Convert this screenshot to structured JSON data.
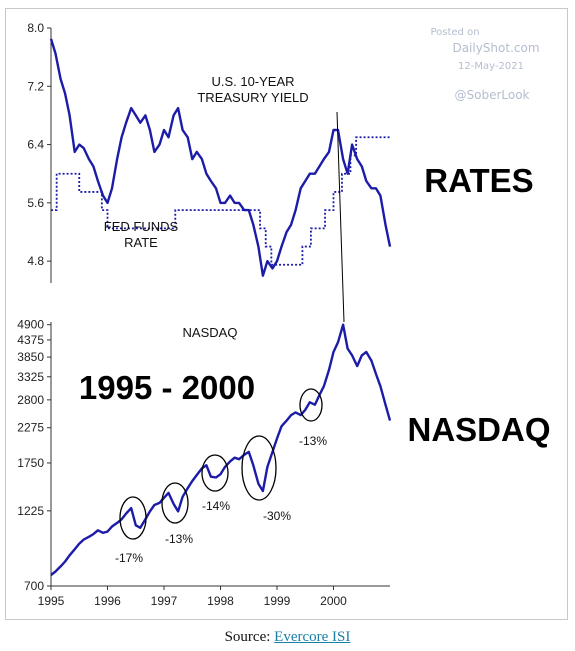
{
  "watermark": {
    "posted": "Posted on",
    "site": "DailyShot.com",
    "date": "12-May-2021",
    "handle": "@SoberLook"
  },
  "labels": {
    "rates_big": "RATES",
    "nasdaq_big": "NASDAQ",
    "period_big": "1995 - 2000"
  },
  "source": {
    "prefix": "Source:",
    "link_text": "Evercore ISI"
  },
  "chart_data": [
    {
      "type": "line",
      "panel": "rates",
      "xlim": [
        1995,
        2001
      ],
      "ylim": [
        4.5,
        8.0
      ],
      "yticks": [
        "8.0",
        "7.2",
        "6.4",
        "5.6",
        "4.8"
      ],
      "xticks": [],
      "color": "#1c1ca8",
      "series": [
        {
          "name": "U.S. 10-YEAR TREASURY YIELD",
          "style": "solid",
          "x": [
            1995.0,
            1995.08,
            1995.17,
            1995.25,
            1995.33,
            1995.42,
            1995.5,
            1995.58,
            1995.67,
            1995.75,
            1995.83,
            1995.92,
            1996.0,
            1996.08,
            1996.17,
            1996.25,
            1996.33,
            1996.42,
            1996.5,
            1996.58,
            1996.67,
            1996.75,
            1996.83,
            1996.92,
            1997.0,
            1997.08,
            1997.17,
            1997.25,
            1997.33,
            1997.42,
            1997.5,
            1997.58,
            1997.67,
            1997.75,
            1997.83,
            1997.92,
            1998.0,
            1998.08,
            1998.17,
            1998.25,
            1998.33,
            1998.42,
            1998.5,
            1998.58,
            1998.67,
            1998.75,
            1998.83,
            1998.92,
            1999.0,
            1999.08,
            1999.17,
            1999.25,
            1999.33,
            1999.42,
            1999.5,
            1999.58,
            1999.67,
            1999.75,
            1999.83,
            1999.92,
            2000.0,
            2000.08,
            2000.17,
            2000.25,
            2000.33,
            2000.42,
            2000.5,
            2000.58,
            2000.67,
            2000.75,
            2000.83,
            2000.92,
            2001.0
          ],
          "values": [
            7.85,
            7.65,
            7.3,
            7.1,
            6.8,
            6.3,
            6.4,
            6.35,
            6.2,
            6.1,
            5.9,
            5.7,
            5.6,
            5.8,
            6.2,
            6.5,
            6.7,
            6.9,
            6.8,
            6.7,
            6.8,
            6.6,
            6.3,
            6.4,
            6.6,
            6.5,
            6.8,
            6.9,
            6.6,
            6.5,
            6.2,
            6.3,
            6.2,
            6.0,
            5.9,
            5.8,
            5.6,
            5.6,
            5.7,
            5.6,
            5.6,
            5.5,
            5.5,
            5.3,
            5.0,
            4.6,
            4.8,
            4.7,
            4.8,
            5.0,
            5.2,
            5.3,
            5.5,
            5.8,
            5.9,
            6.0,
            6.0,
            6.1,
            6.2,
            6.3,
            6.6,
            6.6,
            6.2,
            6.0,
            6.4,
            6.2,
            6.1,
            5.9,
            5.8,
            5.8,
            5.7,
            5.3,
            5.0
          ]
        },
        {
          "name": "FED FUNDS RATE",
          "style": "dotted",
          "x": [
            1995.0,
            1995.1,
            1995.5,
            1995.9,
            1996.0,
            1996.6,
            1997.2,
            1998.7,
            1998.8,
            1998.9,
            1999.45,
            1999.6,
            1999.85,
            2000.0,
            2000.15,
            2000.3,
            2000.4,
            2001.0
          ],
          "values": [
            5.5,
            6.0,
            5.75,
            5.5,
            5.25,
            5.25,
            5.5,
            5.25,
            5.0,
            4.75,
            5.0,
            5.25,
            5.5,
            5.75,
            6.0,
            6.25,
            6.5,
            6.5
          ]
        }
      ]
    },
    {
      "type": "line",
      "panel": "nasdaq",
      "scale": "log",
      "xlim": [
        1995,
        2001
      ],
      "ylim": [
        700,
        5000
      ],
      "yticks": [
        "4900",
        "4375",
        "3850",
        "3325",
        "2800",
        "2275",
        "1750",
        "1225",
        "700"
      ],
      "xticks": [
        "1995",
        "1996",
        "1997",
        "1998",
        "1999",
        "2000"
      ],
      "color": "#1c1ca8",
      "series": [
        {
          "name": "NASDAQ",
          "style": "solid",
          "x": [
            1995.0,
            1995.08,
            1995.17,
            1995.25,
            1995.33,
            1995.42,
            1995.5,
            1995.58,
            1995.67,
            1995.75,
            1995.83,
            1995.92,
            1996.0,
            1996.08,
            1996.17,
            1996.25,
            1996.33,
            1996.42,
            1996.5,
            1996.58,
            1996.67,
            1996.75,
            1996.83,
            1996.92,
            1997.0,
            1997.08,
            1997.17,
            1997.25,
            1997.33,
            1997.42,
            1997.5,
            1997.58,
            1997.67,
            1997.75,
            1997.83,
            1997.92,
            1998.0,
            1998.08,
            1998.17,
            1998.25,
            1998.33,
            1998.42,
            1998.5,
            1998.58,
            1998.67,
            1998.75,
            1998.83,
            1998.92,
            1999.0,
            1999.08,
            1999.17,
            1999.25,
            1999.33,
            1999.42,
            1999.5,
            1999.58,
            1999.67,
            1999.75,
            1999.83,
            1999.92,
            2000.0,
            2000.08,
            2000.17,
            2000.25,
            2000.33,
            2000.42,
            2000.5,
            2000.58,
            2000.67,
            2000.75,
            2000.83,
            2000.92,
            2001.0
          ],
          "values": [
            760,
            780,
            810,
            840,
            880,
            920,
            960,
            990,
            1010,
            1030,
            1060,
            1040,
            1050,
            1090,
            1120,
            1150,
            1200,
            1250,
            1100,
            1080,
            1150,
            1220,
            1280,
            1300,
            1350,
            1400,
            1290,
            1220,
            1360,
            1450,
            1530,
            1600,
            1680,
            1720,
            1580,
            1570,
            1610,
            1700,
            1770,
            1820,
            1800,
            1860,
            1900,
            1720,
            1500,
            1420,
            1700,
            1900,
            2100,
            2300,
            2400,
            2500,
            2550,
            2500,
            2600,
            2750,
            2700,
            2900,
            3100,
            3500,
            4000,
            4300,
            4900,
            4100,
            3900,
            3600,
            3900,
            4000,
            3750,
            3400,
            3100,
            2700,
            2400
          ]
        }
      ],
      "annotations": [
        "-17%",
        "-13%",
        "-14%",
        "-30%",
        "-13%"
      ]
    }
  ]
}
